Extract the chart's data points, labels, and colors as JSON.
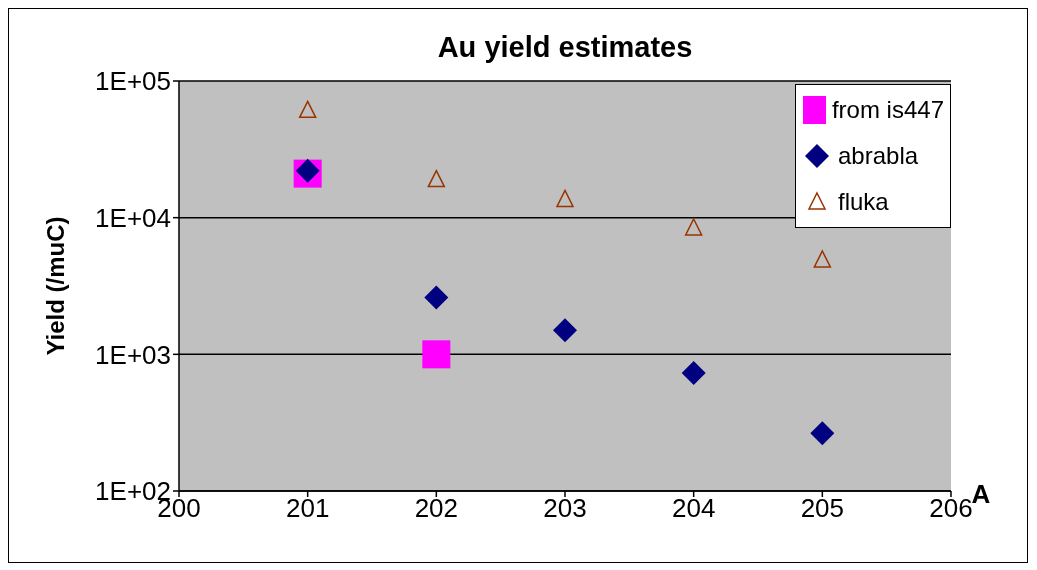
{
  "chart_data": {
    "type": "scatter",
    "title": "Au yield estimates",
    "xlabel": "A",
    "ylabel": "Yield (/muC)",
    "xlim": [
      200,
      206
    ],
    "xticks": [
      200,
      201,
      202,
      203,
      204,
      205,
      206
    ],
    "ylim": [
      100,
      100000
    ],
    "yticks": [
      {
        "value": 100,
        "label": "1E+02"
      },
      {
        "value": 1000,
        "label": "1E+03"
      },
      {
        "value": 10000,
        "label": "1E+04"
      },
      {
        "value": 100000,
        "label": "1E+05"
      }
    ],
    "log": "y",
    "grid": "y",
    "legend": "top right",
    "series": [
      {
        "name": "from is447",
        "color": "#ff00ff",
        "marker": "square",
        "x": [
          201,
          202
        ],
        "values": [
          21000,
          1000
        ]
      },
      {
        "name": "abrabla",
        "color": "#000080",
        "marker": "diamond",
        "x": [
          201,
          202,
          203,
          204,
          205
        ],
        "values": [
          22000,
          2600,
          1500,
          730,
          265
        ]
      },
      {
        "name": "fluka",
        "color": "#993300",
        "marker": "triangle",
        "x": [
          201,
          202,
          203,
          204,
          205
        ],
        "values": [
          61000,
          19000,
          13600,
          8400,
          4900
        ]
      }
    ]
  }
}
